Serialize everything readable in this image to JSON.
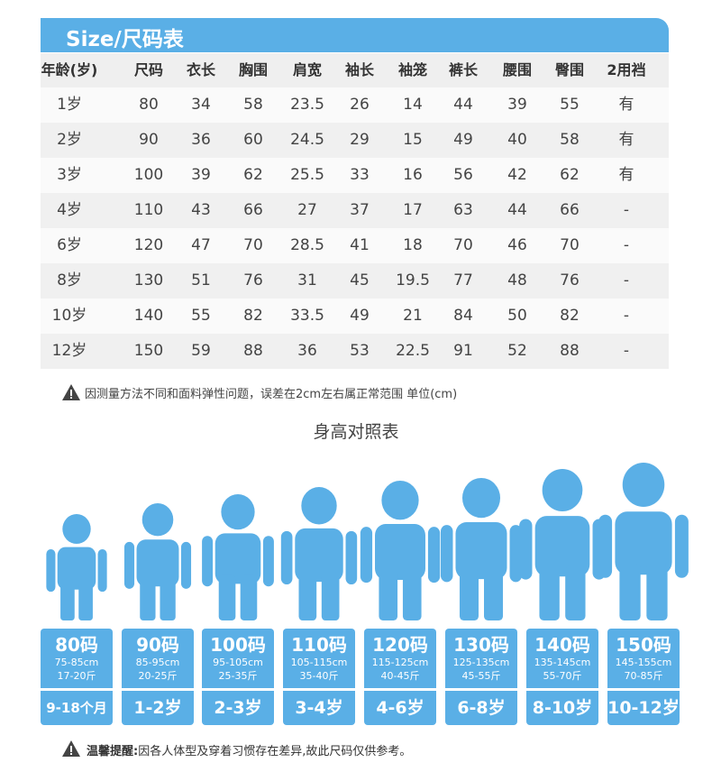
{
  "header": {
    "title": "Size/尺码表"
  },
  "table": {
    "headers": [
      "年龄(岁)",
      "尺码",
      "衣长",
      "胸围",
      "肩宽",
      "袖长",
      "袖笼",
      "裤长",
      "腰围",
      "臀围",
      "2用裆"
    ],
    "rows": [
      [
        "1岁",
        80,
        34,
        58,
        23.5,
        26,
        14,
        44,
        39,
        55,
        "有"
      ],
      [
        "2岁",
        90,
        36,
        60,
        24.5,
        29,
        15,
        49,
        40,
        58,
        "有"
      ],
      [
        "3岁",
        100,
        39,
        62,
        25.5,
        33,
        16,
        56,
        42,
        62,
        "有"
      ],
      [
        "4岁",
        110,
        43,
        66,
        27,
        37,
        17,
        63,
        44,
        66,
        "-"
      ],
      [
        "6岁",
        120,
        47,
        70,
        28.5,
        41,
        18,
        70,
        46,
        70,
        "-"
      ],
      [
        "8岁",
        130,
        51,
        76,
        31,
        45,
        19.5,
        77,
        48,
        76,
        "-"
      ],
      [
        "10岁",
        140,
        55,
        82,
        33.5,
        49,
        21,
        84,
        50,
        82,
        "-"
      ],
      [
        "12岁",
        150,
        59,
        88,
        36,
        53,
        22.5,
        91,
        52,
        88,
        "-"
      ]
    ]
  },
  "note": "因测量方法不同和面料弹性问题，误差在2cm左右属正常范围 单位(cm)",
  "height_chart": {
    "title": "身高对照表",
    "items": [
      {
        "size": "80码",
        "height": "75-85cm",
        "weight": "17-20斤",
        "age": "9-18个月"
      },
      {
        "size": "90码",
        "height": "85-95cm",
        "weight": "20-25斤",
        "age": "1-2岁"
      },
      {
        "size": "100码",
        "height": "95-105cm",
        "weight": "25-35斤",
        "age": "2-3岁"
      },
      {
        "size": "110码",
        "height": "105-115cm",
        "weight": "35-40斤",
        "age": "3-4岁"
      },
      {
        "size": "120码",
        "height": "115-125cm",
        "weight": "40-45斤",
        "age": "4-6岁"
      },
      {
        "size": "130码",
        "height": "125-135cm",
        "weight": "45-55斤",
        "age": "6-8岁"
      },
      {
        "size": "140码",
        "height": "135-145cm",
        "weight": "55-70斤",
        "age": "8-10岁"
      },
      {
        "size": "150码",
        "height": "145-155cm",
        "weight": "70-85斤",
        "age": "10-12岁"
      }
    ]
  },
  "footer": {
    "label": "温馨提醒:",
    "text": "因各人体型及穿着习惯存在差异,故此尺码仅供参考。"
  }
}
